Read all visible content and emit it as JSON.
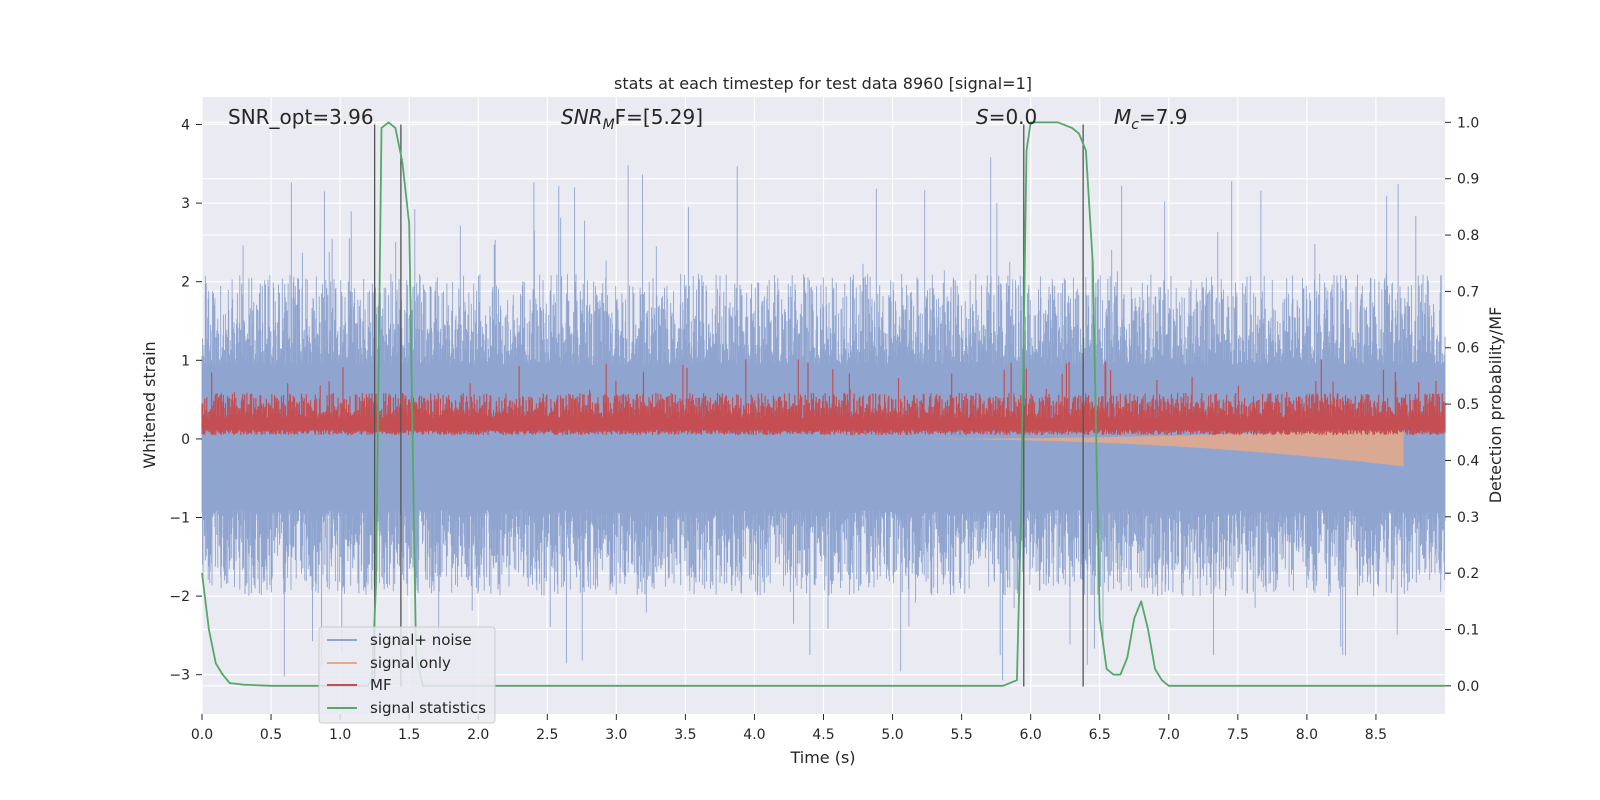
{
  "chart_data": {
    "type": "line",
    "title": "stats at each timestep for test data 8960 [signal=1]",
    "xlabel": "Time (s)",
    "ylabel_left": "Whitened strain",
    "ylabel_right": "Detection probability/MF",
    "xlim": [
      0,
      9.0
    ],
    "ylim_left": [
      -3.5,
      4.35
    ],
    "ylim_right": [
      -0.05,
      1.045
    ],
    "xticks": [
      "0.0",
      "0.5",
      "1.0",
      "1.5",
      "2.0",
      "2.5",
      "3.0",
      "3.5",
      "4.0",
      "4.5",
      "5.0",
      "5.5",
      "6.0",
      "6.5",
      "7.0",
      "7.5",
      "8.0",
      "8.5"
    ],
    "xtick_values": [
      0,
      0.5,
      1,
      1.5,
      2,
      2.5,
      3,
      3.5,
      4,
      4.5,
      5,
      5.5,
      6,
      6.5,
      7,
      7.5,
      8,
      8.5
    ],
    "yticks_left": [
      "−3",
      "−2",
      "−1",
      "0",
      "1",
      "2",
      "3",
      "4"
    ],
    "ytick_values_left": [
      -3,
      -2,
      -1,
      0,
      1,
      2,
      3,
      4
    ],
    "yticks_right": [
      "0.0",
      "0.1",
      "0.2",
      "0.3",
      "0.4",
      "0.5",
      "0.6",
      "0.7",
      "0.8",
      "0.9",
      "1.0"
    ],
    "ytick_values_right": [
      0,
      0.1,
      0.2,
      0.3,
      0.4,
      0.5,
      0.6,
      0.7,
      0.8,
      0.9,
      1.0
    ],
    "grid": true,
    "legend_position": "lower-left",
    "legend": [
      {
        "label": "signal+ noise",
        "color": "#8fa5d0"
      },
      {
        "label": "signal only",
        "color": "#e8a98a"
      },
      {
        "label": "MF",
        "color": "#c44e52"
      },
      {
        "label": "signal statistics",
        "color": "#55a868"
      }
    ],
    "annotations": {
      "snr_opt": "SNR_opt=3.96",
      "snr_mf_main": "SNR",
      "snr_mf_sub": "M",
      "snr_mf_tail": "F=[5.29]",
      "s_main": "S",
      "s_tail": "=0.0",
      "mc_main": "M",
      "mc_sub": "c",
      "mc_tail": "=7.9"
    },
    "series": [
      {
        "name": "signal+ noise",
        "kind": "noise_band",
        "x_range": [
          0,
          9.0
        ],
        "envelope_y": [
          -2.0,
          2.1
        ],
        "max_y": 3.6,
        "min_y": -3.1,
        "color": "#8fa5d0"
      },
      {
        "name": "signal only",
        "kind": "chirp",
        "x_range": [
          5.0,
          8.7
        ],
        "amplitude_end": 0.35,
        "color": "#e8a98a"
      },
      {
        "name": "MF",
        "kind": "band_right_axis",
        "x_range": [
          0,
          9.0
        ],
        "band_right": [
          0.45,
          0.52
        ],
        "peak_right": 0.58,
        "color": "#c44e52"
      },
      {
        "name": "signal statistics",
        "kind": "line_right_axis",
        "x": [
          0.0,
          0.05,
          0.1,
          0.15,
          0.2,
          0.3,
          0.5,
          0.8,
          1.0,
          1.1,
          1.2,
          1.23,
          1.26,
          1.3,
          1.35,
          1.4,
          1.45,
          1.5,
          1.55,
          1.6,
          1.7,
          2.0,
          3.0,
          4.0,
          5.0,
          5.5,
          5.8,
          5.9,
          5.93,
          5.97,
          6.0,
          6.05,
          6.1,
          6.2,
          6.3,
          6.35,
          6.4,
          6.45,
          6.5,
          6.55,
          6.6,
          6.65,
          6.7,
          6.75,
          6.8,
          6.85,
          6.9,
          6.95,
          7.0,
          7.05,
          7.1,
          7.5,
          8.0,
          8.5,
          9.0
        ],
        "y": [
          0.2,
          0.1,
          0.04,
          0.02,
          0.005,
          0.002,
          0.0,
          0.0,
          0.0,
          0.0,
          0.0,
          0.01,
          0.18,
          0.99,
          1.0,
          0.99,
          0.93,
          0.82,
          0.05,
          0.0,
          0.0,
          0.0,
          0.0,
          0.0,
          0.0,
          0.0,
          0.0,
          0.01,
          0.3,
          0.95,
          1.0,
          1.0,
          1.0,
          1.0,
          0.99,
          0.98,
          0.95,
          0.75,
          0.12,
          0.03,
          0.02,
          0.02,
          0.05,
          0.12,
          0.15,
          0.1,
          0.03,
          0.01,
          0.0,
          0.0,
          0.0,
          0.0,
          0.0,
          0.0,
          0.0
        ],
        "color": "#55a868"
      },
      {
        "name": "markers",
        "kind": "vertical_lines",
        "x": [
          1.25,
          1.44,
          5.95,
          6.38
        ],
        "y_range_left": [
          -3.15,
          4.0
        ],
        "color": "#555555"
      }
    ]
  }
}
